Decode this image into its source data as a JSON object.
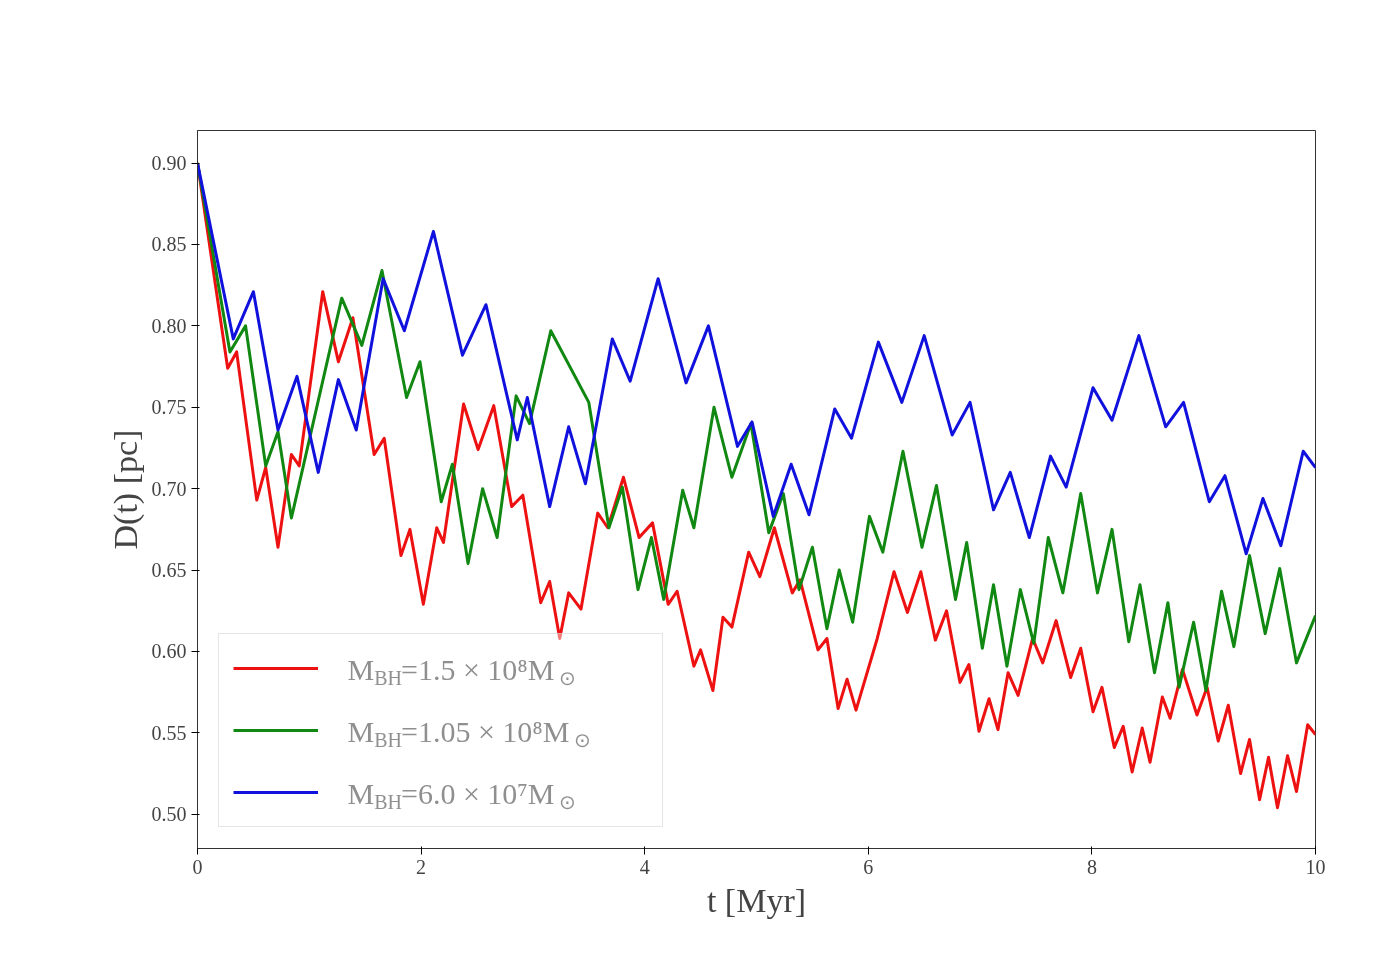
{
  "chart_data": {
    "type": "line",
    "xlabel": "t [Myr]",
    "ylabel": "D(t) [pc]",
    "xlim": [
      0,
      10
    ],
    "ylim": [
      0.479,
      0.92
    ],
    "xticks": [
      0,
      2,
      4,
      6,
      8,
      10
    ],
    "yticks": [
      {
        "value": 0.5,
        "label": "0.50"
      },
      {
        "value": 0.55,
        "label": "0.55"
      },
      {
        "value": 0.6,
        "label": "0.60"
      },
      {
        "value": 0.65,
        "label": "0.65"
      },
      {
        "value": 0.7,
        "label": "0.70"
      },
      {
        "value": 0.75,
        "label": "0.75"
      },
      {
        "value": 0.8,
        "label": "0.80"
      },
      {
        "value": 0.85,
        "label": "0.85"
      },
      {
        "value": 0.9,
        "label": "0.90"
      }
    ],
    "grid": false,
    "legend": "bottom left",
    "line_style": "solid",
    "marker": "none",
    "series": [
      {
        "name": "M$_{BH}$=1.5 × 10⁸M$_{⊙}$",
        "color": "#ee1111",
        "x": [
          0,
          0.27,
          0.35,
          0.53,
          0.61,
          0.72,
          0.84,
          0.91,
          1.12,
          1.26,
          1.39,
          1.58,
          1.67,
          1.82,
          1.9,
          2.02,
          2.14,
          2.2,
          2.38,
          2.51,
          2.65,
          2.81,
          2.91,
          3.07,
          3.15,
          3.24,
          3.32,
          3.43,
          3.58,
          3.67,
          3.81,
          3.95,
          4.07,
          4.21,
          4.29,
          4.44,
          4.5,
          4.61,
          4.7,
          4.78,
          4.93,
          5.03,
          5.16,
          5.32,
          5.39,
          5.55,
          5.63,
          5.73,
          5.81,
          5.89,
          6.08,
          6.23,
          6.35,
          6.47,
          6.6,
          6.7,
          6.82,
          6.9,
          6.99,
          7.08,
          7.16,
          7.25,
          7.34,
          7.47,
          7.56,
          7.68,
          7.81,
          7.9,
          8.01,
          8.09,
          8.2,
          8.28,
          8.36,
          8.45,
          8.52,
          8.63,
          8.7,
          8.81,
          8.94,
          9.03,
          9.13,
          9.22,
          9.33,
          9.41,
          9.5,
          9.58,
          9.66,
          9.75,
          9.83,
          9.93,
          10
        ],
        "values": [
          0.9,
          0.774,
          0.784,
          0.693,
          0.713,
          0.664,
          0.721,
          0.714,
          0.821,
          0.778,
          0.805,
          0.721,
          0.731,
          0.659,
          0.675,
          0.629,
          0.676,
          0.667,
          0.752,
          0.724,
          0.751,
          0.689,
          0.696,
          0.63,
          0.643,
          0.608,
          0.636,
          0.626,
          0.685,
          0.676,
          0.707,
          0.67,
          0.679,
          0.629,
          0.637,
          0.591,
          0.601,
          0.576,
          0.621,
          0.615,
          0.661,
          0.646,
          0.676,
          0.636,
          0.644,
          0.601,
          0.608,
          0.565,
          0.583,
          0.564,
          0.608,
          0.649,
          0.624,
          0.649,
          0.607,
          0.625,
          0.581,
          0.592,
          0.551,
          0.571,
          0.552,
          0.587,
          0.573,
          0.608,
          0.593,
          0.619,
          0.584,
          0.602,
          0.563,
          0.578,
          0.541,
          0.554,
          0.526,
          0.553,
          0.532,
          0.572,
          0.559,
          0.589,
          0.561,
          0.578,
          0.545,
          0.567,
          0.525,
          0.546,
          0.509,
          0.535,
          0.504,
          0.536,
          0.514,
          0.555,
          0.549
        ]
      },
      {
        "name": "M$_{BH}$=1.05 × 10⁸M$_{⊙}$",
        "color": "#118811",
        "x": [
          0,
          0.29,
          0.43,
          0.61,
          0.72,
          0.84,
          1.29,
          1.47,
          1.65,
          1.87,
          1.99,
          2.18,
          2.28,
          2.42,
          2.55,
          2.68,
          2.85,
          2.97,
          3.16,
          3.5,
          3.68,
          3.8,
          3.94,
          4.06,
          4.17,
          4.34,
          4.44,
          4.62,
          4.78,
          4.95,
          5.11,
          5.24,
          5.38,
          5.5,
          5.63,
          5.74,
          5.86,
          6.01,
          6.13,
          6.31,
          6.48,
          6.61,
          6.78,
          6.88,
          7.02,
          7.12,
          7.24,
          7.36,
          7.48,
          7.61,
          7.74,
          7.9,
          8.05,
          8.18,
          8.33,
          8.43,
          8.56,
          8.68,
          8.78,
          8.91,
          9.02,
          9.16,
          9.27,
          9.41,
          9.55,
          9.68,
          9.83,
          10
        ],
        "values": [
          0.9,
          0.784,
          0.8,
          0.714,
          0.735,
          0.682,
          0.817,
          0.788,
          0.834,
          0.756,
          0.778,
          0.692,
          0.715,
          0.654,
          0.7,
          0.67,
          0.757,
          0.74,
          0.797,
          0.753,
          0.676,
          0.701,
          0.638,
          0.67,
          0.632,
          0.699,
          0.676,
          0.75,
          0.707,
          0.74,
          0.673,
          0.697,
          0.638,
          0.664,
          0.614,
          0.65,
          0.618,
          0.683,
          0.661,
          0.723,
          0.664,
          0.702,
          0.632,
          0.667,
          0.602,
          0.641,
          0.591,
          0.638,
          0.605,
          0.67,
          0.636,
          0.697,
          0.636,
          0.675,
          0.606,
          0.641,
          0.587,
          0.63,
          0.578,
          0.618,
          0.576,
          0.637,
          0.603,
          0.659,
          0.611,
          0.651,
          0.593,
          0.622
        ]
      },
      {
        "name": "M$_{BH}$=6.0 × 10⁷M$_{⊙}$",
        "color": "#1111dd",
        "x": [
          0,
          0.32,
          0.5,
          0.72,
          0.89,
          1.08,
          1.26,
          1.42,
          1.66,
          1.85,
          2.11,
          2.37,
          2.58,
          2.86,
          2.95,
          3.15,
          3.32,
          3.47,
          3.71,
          3.87,
          4.12,
          4.37,
          4.57,
          4.83,
          4.96,
          5.15,
          5.31,
          5.47,
          5.7,
          5.85,
          6.09,
          6.3,
          6.5,
          6.75,
          6.91,
          7.12,
          7.27,
          7.44,
          7.63,
          7.77,
          8.01,
          8.18,
          8.42,
          8.66,
          8.82,
          9.05,
          9.19,
          9.38,
          9.53,
          9.69,
          9.89,
          10
        ],
        "values": [
          0.9,
          0.792,
          0.821,
          0.736,
          0.769,
          0.71,
          0.767,
          0.736,
          0.829,
          0.797,
          0.858,
          0.782,
          0.813,
          0.73,
          0.756,
          0.689,
          0.738,
          0.703,
          0.792,
          0.766,
          0.829,
          0.765,
          0.8,
          0.726,
          0.741,
          0.683,
          0.715,
          0.684,
          0.749,
          0.731,
          0.79,
          0.753,
          0.794,
          0.733,
          0.753,
          0.687,
          0.71,
          0.67,
          0.72,
          0.701,
          0.762,
          0.742,
          0.794,
          0.738,
          0.753,
          0.692,
          0.708,
          0.66,
          0.694,
          0.665,
          0.723,
          0.713
        ]
      }
    ]
  }
}
